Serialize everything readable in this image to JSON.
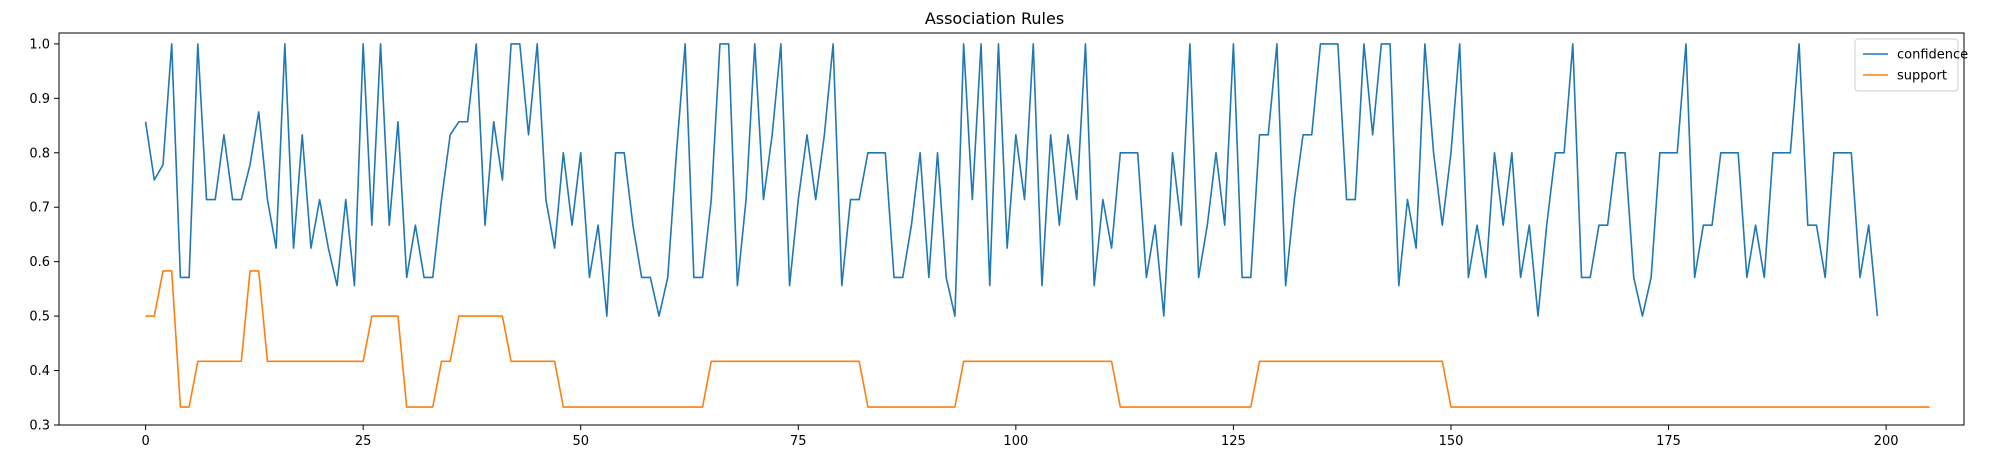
{
  "chart_data": {
    "type": "line",
    "title": "Association Rules",
    "xlabel": "",
    "ylabel": "",
    "xlim": [
      -9.95,
      208.95
    ],
    "ylim": [
      0.3,
      1.02
    ],
    "xticks": [
      0,
      25,
      50,
      75,
      100,
      125,
      150,
      175,
      200
    ],
    "yticks": [
      0.3,
      0.4,
      0.5,
      0.6,
      0.7,
      0.8,
      0.9,
      1.0
    ],
    "grid": false,
    "legend": "top-right",
    "series": [
      {
        "name": "confidence",
        "color": "#1f77b4",
        "values": [
          0.857,
          0.75,
          0.778,
          1.0,
          0.571,
          0.571,
          1.0,
          0.714,
          0.714,
          0.833,
          0.714,
          0.714,
          0.778,
          0.875,
          0.714,
          0.625,
          1.0,
          0.625,
          0.833,
          0.625,
          0.714,
          0.625,
          0.556,
          0.714,
          0.556,
          1.0,
          0.667,
          1.0,
          0.667,
          0.857,
          0.571,
          0.667,
          0.571,
          0.571,
          0.714,
          0.833,
          0.857,
          0.857,
          1.0,
          0.667,
          0.857,
          0.75,
          1.0,
          1.0,
          0.833,
          1.0,
          0.714,
          0.625,
          0.8,
          0.667,
          0.8,
          0.571,
          0.667,
          0.5,
          0.8,
          0.8,
          0.667,
          0.571,
          0.571,
          0.5,
          0.571,
          0.8,
          1.0,
          0.571,
          0.571,
          0.714,
          1.0,
          1.0,
          0.556,
          0.714,
          1.0,
          0.714,
          0.833,
          1.0,
          0.556,
          0.714,
          0.833,
          0.714,
          0.833,
          1.0,
          0.556,
          0.714,
          0.714,
          0.8,
          0.8,
          0.8,
          0.571,
          0.571,
          0.667,
          0.8,
          0.571,
          0.8,
          0.571,
          0.5,
          1.0,
          0.714,
          1.0,
          0.556,
          1.0,
          0.625,
          0.833,
          0.714,
          1.0,
          0.556,
          0.833,
          0.667,
          0.833,
          0.714,
          1.0,
          0.556,
          0.714,
          0.625,
          0.8,
          0.8,
          0.8,
          0.571,
          0.667,
          0.5,
          0.8,
          0.667,
          1.0,
          0.571,
          0.667,
          0.8,
          0.667,
          1.0,
          0.571,
          0.571,
          0.833,
          0.833,
          1.0,
          0.556,
          0.714,
          0.833,
          0.833,
          1.0,
          1.0,
          1.0,
          0.714,
          0.714,
          1.0,
          0.833,
          1.0,
          1.0,
          0.556,
          0.714,
          0.625,
          1.0,
          0.8,
          0.667,
          0.8,
          1.0,
          0.571,
          0.667,
          0.571,
          0.8,
          0.667,
          0.8,
          0.571,
          0.667,
          0.5,
          0.667,
          0.8,
          0.8,
          1.0,
          0.571,
          0.571,
          0.667,
          0.667,
          0.8,
          0.8,
          0.571,
          0.5,
          0.571,
          0.8,
          0.8,
          0.8,
          1.0,
          0.571,
          0.667,
          0.667,
          0.8,
          0.8,
          0.8,
          0.571,
          0.667,
          0.571,
          0.8,
          0.8,
          0.8,
          1.0,
          0.667,
          0.667,
          0.571,
          0.8,
          0.8,
          0.8,
          0.571,
          0.667,
          0.5
        ]
      },
      {
        "name": "support",
        "color": "#ff7f0e",
        "values": [
          0.5,
          0.5,
          0.583,
          0.583,
          0.333,
          0.333,
          0.417,
          0.417,
          0.417,
          0.417,
          0.417,
          0.417,
          0.583,
          0.583,
          0.417,
          0.417,
          0.417,
          0.417,
          0.417,
          0.417,
          0.417,
          0.417,
          0.417,
          0.417,
          0.417,
          0.417,
          0.5,
          0.5,
          0.5,
          0.5,
          0.333,
          0.333,
          0.333,
          0.333,
          0.417,
          0.417,
          0.5,
          0.5,
          0.5,
          0.5,
          0.5,
          0.5,
          0.417,
          0.417,
          0.417,
          0.417,
          0.417,
          0.417,
          0.333,
          0.333,
          0.333,
          0.333,
          0.333,
          0.333,
          0.333,
          0.333,
          0.333,
          0.333,
          0.333,
          0.333,
          0.333,
          0.333,
          0.333,
          0.333,
          0.333,
          0.417,
          0.417,
          0.417,
          0.417,
          0.417,
          0.417,
          0.417,
          0.417,
          0.417,
          0.417,
          0.417,
          0.417,
          0.417,
          0.417,
          0.417,
          0.417,
          0.417,
          0.417,
          0.333,
          0.333,
          0.333,
          0.333,
          0.333,
          0.333,
          0.333,
          0.333,
          0.333,
          0.333,
          0.333,
          0.417,
          0.417,
          0.417,
          0.417,
          0.417,
          0.417,
          0.417,
          0.417,
          0.417,
          0.417,
          0.417,
          0.417,
          0.417,
          0.417,
          0.417,
          0.417,
          0.417,
          0.417,
          0.333,
          0.333,
          0.333,
          0.333,
          0.333,
          0.333,
          0.333,
          0.333,
          0.333,
          0.333,
          0.333,
          0.333,
          0.333,
          0.333,
          0.333,
          0.333,
          0.417,
          0.417,
          0.417,
          0.417,
          0.417,
          0.417,
          0.417,
          0.417,
          0.417,
          0.417,
          0.417,
          0.417,
          0.417,
          0.417,
          0.417,
          0.417,
          0.417,
          0.417,
          0.417,
          0.417,
          0.417,
          0.417,
          0.333,
          0.333,
          0.333,
          0.333,
          0.333,
          0.333,
          0.333,
          0.333,
          0.333,
          0.333,
          0.333,
          0.333,
          0.333,
          0.333,
          0.333,
          0.333,
          0.333,
          0.333,
          0.333,
          0.333,
          0.333,
          0.333,
          0.333,
          0.333,
          0.333,
          0.333,
          0.333,
          0.333,
          0.333,
          0.333,
          0.333,
          0.333,
          0.333,
          0.333,
          0.333,
          0.333,
          0.333,
          0.333,
          0.333,
          0.333,
          0.333,
          0.333,
          0.333,
          0.333,
          0.333,
          0.333,
          0.333,
          0.333,
          0.333,
          0.333,
          0.333,
          0.333,
          0.333,
          0.333,
          0.333,
          0.333
        ]
      }
    ]
  }
}
